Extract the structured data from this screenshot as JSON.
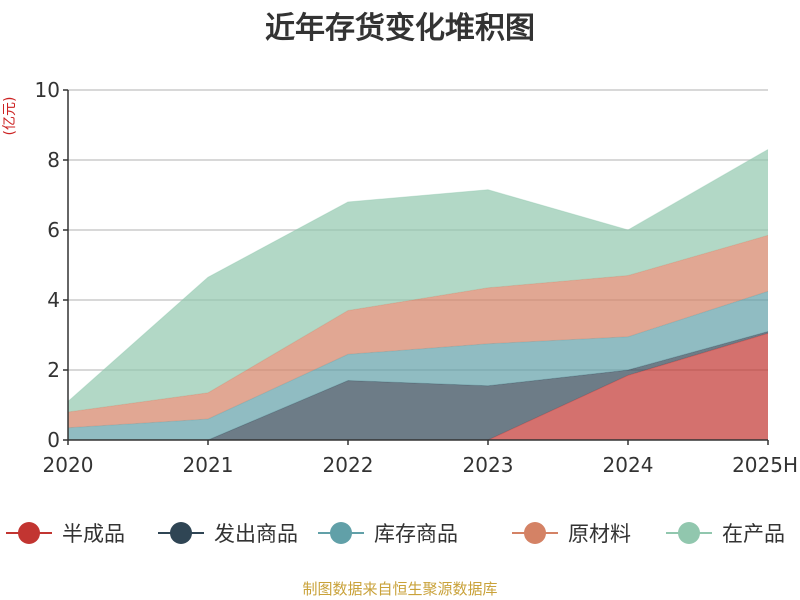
{
  "chart_data": {
    "type": "area",
    "stacked": true,
    "title": "近年存货变化堆积图",
    "ylabel": "(亿元)",
    "xlabel": "",
    "categories": [
      "2020",
      "2021",
      "2022",
      "2023",
      "2024",
      "2025H"
    ],
    "ylim": [
      0,
      10
    ],
    "yticks": [
      0,
      2,
      4,
      6,
      8,
      10
    ],
    "grid": true,
    "legend_position": "bottom",
    "series": [
      {
        "name": "半成品",
        "color": "#c23531",
        "values": [
          0,
          0,
          0,
          0,
          1.85,
          3.05
        ]
      },
      {
        "name": "发出商品",
        "color": "#2f4554",
        "values": [
          0,
          0,
          1.7,
          1.55,
          0.15,
          0.05
        ]
      },
      {
        "name": "库存商品",
        "color": "#61a0a8",
        "values": [
          0.35,
          0.6,
          0.75,
          1.2,
          0.95,
          1.15
        ]
      },
      {
        "name": "原材料",
        "color": "#d48265",
        "values": [
          0.45,
          0.75,
          1.25,
          1.6,
          1.75,
          1.6
        ]
      },
      {
        "name": "在产品",
        "color": "#91c7ae",
        "values": [
          0.3,
          3.3,
          3.1,
          2.8,
          1.3,
          2.45
        ]
      }
    ],
    "source_note": "制图数据来自恒生聚源数据库"
  }
}
